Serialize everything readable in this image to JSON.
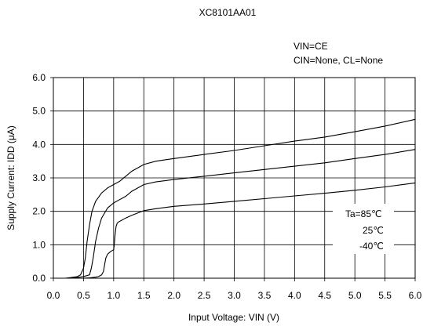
{
  "chart_data": {
    "type": "line",
    "title": "XC8101AA01",
    "conditions": [
      "VIN=CE",
      "CIN=None, CL=None"
    ],
    "xlabel": "Input Voltage: VIN (V)",
    "ylabel": "Supply Current: IDD (μA)",
    "xlim": [
      0,
      6.0
    ],
    "ylim": [
      0,
      6.0
    ],
    "xticks": [
      "0.0",
      "0.5",
      "1.0",
      "1.5",
      "2.0",
      "2.5",
      "3.0",
      "3.5",
      "4.0",
      "4.5",
      "5.0",
      "5.5",
      "6.0"
    ],
    "yticks": [
      "0.0",
      "1.0",
      "2.0",
      "3.0",
      "4.0",
      "5.0",
      "6.0"
    ],
    "grid": true,
    "legend_labels": [
      "Ta=85℃",
      "25℃",
      "-40℃"
    ],
    "series": [
      {
        "name": "Ta=85℃",
        "x": [
          0.2,
          0.3,
          0.4,
          0.45,
          0.5,
          0.53,
          0.56,
          0.6,
          0.64,
          0.7,
          0.8,
          0.9,
          1.0,
          1.1,
          1.2,
          1.3,
          1.5,
          1.7,
          2.0,
          2.5,
          3.0,
          3.5,
          4.0,
          4.5,
          5.0,
          5.5,
          6.0
        ],
        "y": [
          0.0,
          0.02,
          0.05,
          0.1,
          0.3,
          0.6,
          1.1,
          1.6,
          2.0,
          2.3,
          2.55,
          2.7,
          2.8,
          2.9,
          3.05,
          3.2,
          3.4,
          3.5,
          3.58,
          3.7,
          3.82,
          3.96,
          4.1,
          4.22,
          4.38,
          4.55,
          4.75
        ]
      },
      {
        "name": "25℃",
        "x": [
          0.3,
          0.4,
          0.5,
          0.6,
          0.63,
          0.66,
          0.7,
          0.75,
          0.8,
          0.9,
          1.0,
          1.1,
          1.2,
          1.3,
          1.5,
          1.7,
          2.0,
          2.5,
          3.0,
          3.5,
          4.0,
          4.5,
          5.0,
          5.5,
          6.0
        ],
        "y": [
          0.0,
          0.02,
          0.05,
          0.1,
          0.3,
          0.6,
          1.1,
          1.5,
          1.8,
          2.1,
          2.25,
          2.35,
          2.45,
          2.6,
          2.8,
          2.88,
          2.95,
          3.05,
          3.15,
          3.25,
          3.35,
          3.45,
          3.58,
          3.7,
          3.85
        ]
      },
      {
        "name": "-40℃",
        "x": [
          0.5,
          0.6,
          0.7,
          0.75,
          0.8,
          0.83,
          0.85,
          0.87,
          0.9,
          0.95,
          1.0,
          1.01,
          1.02,
          1.04,
          1.06,
          1.08,
          1.1,
          1.2,
          1.3,
          1.5,
          1.7,
          2.0,
          2.5,
          3.0,
          3.5,
          4.0,
          4.5,
          5.0,
          5.5,
          6.0
        ],
        "y": [
          0.0,
          0.01,
          0.03,
          0.05,
          0.1,
          0.2,
          0.4,
          0.6,
          0.72,
          0.8,
          0.85,
          1.0,
          1.25,
          1.55,
          1.65,
          1.68,
          1.7,
          1.8,
          1.88,
          2.02,
          2.08,
          2.15,
          2.22,
          2.3,
          2.38,
          2.46,
          2.54,
          2.63,
          2.73,
          2.85
        ]
      }
    ]
  }
}
